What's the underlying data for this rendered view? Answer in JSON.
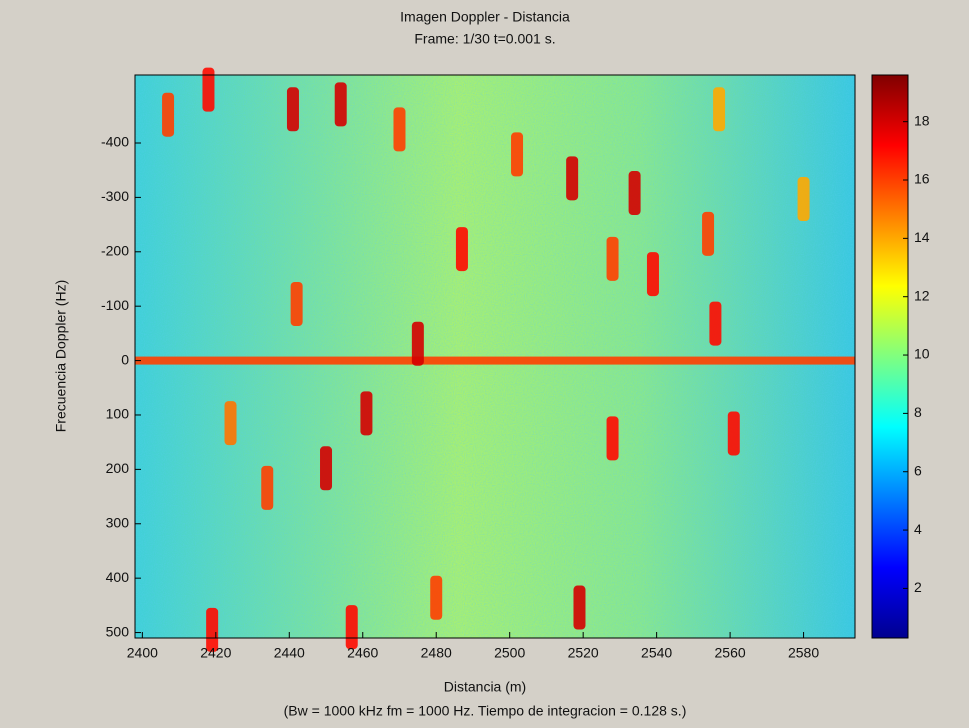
{
  "chart_data": {
    "type": "heatmap",
    "title": "Imagen Doppler - Distancia",
    "subtitle": "Frame: 1/30   t=0.001 s.",
    "x_label": "Distancia (m)",
    "y_label": "Frecuencia Doppler (Hz)",
    "note": "(Bw = 1000 kHz  fm = 1000 Hz. Tiempo de integracion = 0.128 s.)",
    "colormap": "jet",
    "xlim": [
      2398,
      2594
    ],
    "xticks": [
      2400,
      2420,
      2440,
      2460,
      2480,
      2500,
      2520,
      2540,
      2560,
      2580
    ],
    "ylim": [
      510,
      -525
    ],
    "yticks": [
      -400,
      -300,
      -200,
      -100,
      0,
      100,
      200,
      300,
      400,
      500
    ],
    "clim": [
      0.3,
      19.6
    ],
    "cticks": [
      2,
      4,
      6,
      8,
      10,
      12,
      14,
      16,
      18
    ],
    "clutter_line": {
      "y": 0,
      "value": 16
    },
    "targets": [
      {
        "x": 2407,
        "y": -452,
        "value": 16
      },
      {
        "x": 2418,
        "y": -498,
        "value": 17
      },
      {
        "x": 2441,
        "y": -462,
        "value": 18
      },
      {
        "x": 2454,
        "y": -471,
        "value": 18
      },
      {
        "x": 2470,
        "y": -425,
        "value": 16
      },
      {
        "x": 2502,
        "y": -379,
        "value": 16
      },
      {
        "x": 2517,
        "y": -335,
        "value": 18
      },
      {
        "x": 2534,
        "y": -308,
        "value": 18
      },
      {
        "x": 2487,
        "y": -205,
        "value": 17
      },
      {
        "x": 2528,
        "y": -187,
        "value": 16
      },
      {
        "x": 2539,
        "y": -159,
        "value": 17
      },
      {
        "x": 2554,
        "y": -233,
        "value": 16
      },
      {
        "x": 2580,
        "y": -297,
        "value": 14
      },
      {
        "x": 2442,
        "y": -104,
        "value": 16
      },
      {
        "x": 2475,
        "y": -31,
        "value": 18
      },
      {
        "x": 2556,
        "y": -68,
        "value": 17
      },
      {
        "x": 2461,
        "y": 97,
        "value": 18
      },
      {
        "x": 2528,
        "y": 143,
        "value": 17
      },
      {
        "x": 2561,
        "y": 134,
        "value": 17
      },
      {
        "x": 2424,
        "y": 115,
        "value": 15
      },
      {
        "x": 2450,
        "y": 198,
        "value": 18
      },
      {
        "x": 2434,
        "y": 234,
        "value": 16
      },
      {
        "x": 2480,
        "y": 436,
        "value": 16
      },
      {
        "x": 2519,
        "y": 454,
        "value": 18
      },
      {
        "x": 2419,
        "y": 495,
        "value": 17
      },
      {
        "x": 2457,
        "y": 490,
        "value": 17
      },
      {
        "x": 2557,
        "y": -462,
        "value": 14
      }
    ]
  }
}
